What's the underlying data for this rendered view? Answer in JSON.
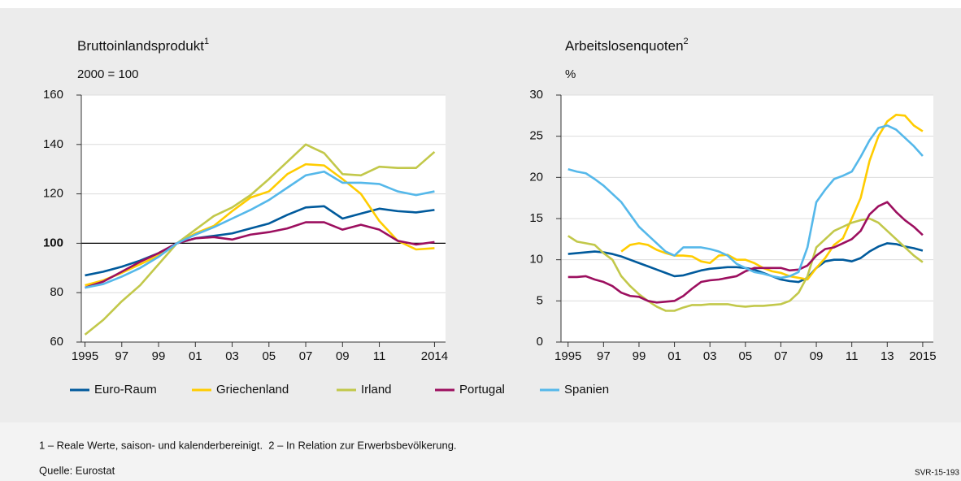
{
  "chart_data": [
    {
      "type": "line",
      "title": "Bruttoinlandsprodukt",
      "title_note": "1",
      "subtitle": "2000 = 100",
      "x": [
        1995,
        1996,
        1997,
        1998,
        1999,
        2000,
        2001,
        2002,
        2003,
        2004,
        2005,
        2006,
        2007,
        2008,
        2009,
        2010,
        2011,
        2012,
        2013,
        2014
      ],
      "xlim": [
        1994.8,
        2014.6
      ],
      "xticks": [
        1995,
        {
          "value": 1997,
          "label": "97"
        },
        {
          "value": 1999,
          "label": "99"
        },
        {
          "value": 2001,
          "label": "01"
        },
        {
          "value": 2003,
          "label": "03"
        },
        {
          "value": 2005,
          "label": "05"
        },
        {
          "value": 2007,
          "label": "07"
        },
        {
          "value": 2009,
          "label": "09"
        },
        {
          "value": 2011,
          "label": "11"
        },
        2014
      ],
      "ylim": [
        60,
        160
      ],
      "yticks": [
        60,
        80,
        100,
        120,
        140,
        160
      ],
      "reference_line": 100,
      "grid": true,
      "series": [
        {
          "name": "Euro-Raum",
          "color": "#005a9c",
          "values": [
            87,
            88.5,
            90.5,
            93,
            96,
            100,
            102,
            103,
            104,
            106,
            108,
            111.5,
            114.5,
            115,
            110,
            112,
            114,
            113,
            112.5,
            113.5
          ]
        },
        {
          "name": "Griechenland",
          "color": "#ffcc00",
          "values": [
            83,
            85,
            88,
            91.5,
            95,
            100,
            104,
            107,
            113,
            118.5,
            121,
            128,
            132,
            131.5,
            126,
            120,
            109,
            101,
            97.5,
            98
          ]
        },
        {
          "name": "Irland",
          "color": "#c2c84a",
          "values": [
            63,
            69,
            76.5,
            83,
            91.5,
            100,
            105.5,
            111,
            114.5,
            119.5,
            126,
            133,
            140,
            136.5,
            128,
            127.5,
            131,
            130.5,
            130.5,
            137
          ]
        },
        {
          "name": "Portugal",
          "color": "#9c0f5f",
          "values": [
            82,
            84.5,
            88.5,
            92.5,
            96,
            100,
            102,
            102.5,
            101.5,
            103.5,
            104.5,
            106,
            108.5,
            108.5,
            105.5,
            107.5,
            105.5,
            101,
            99.5,
            100.5
          ]
        },
        {
          "name": "Spanien",
          "color": "#55b8ea",
          "values": [
            82,
            83.5,
            86.5,
            90,
            94.5,
            100,
            103.5,
            106.5,
            110,
            113.5,
            117.5,
            122.5,
            127.5,
            129,
            124.5,
            124.5,
            124,
            121,
            119.5,
            121
          ]
        }
      ]
    },
    {
      "type": "line",
      "title": "Arbeitslosenquoten",
      "title_note": "2",
      "subtitle": "%",
      "x": [
        1995,
        1995.5,
        1996,
        1996.5,
        1997,
        1997.5,
        1998,
        1998.5,
        1999,
        1999.5,
        2000,
        2000.5,
        2001,
        2001.5,
        2002,
        2002.5,
        2003,
        2003.5,
        2004,
        2004.5,
        2005,
        2005.5,
        2006,
        2006.5,
        2007,
        2007.5,
        2008,
        2008.5,
        2009,
        2009.5,
        2010,
        2010.5,
        2011,
        2011.5,
        2012,
        2012.5,
        2013,
        2013.5,
        2014,
        2014.5,
        2015
      ],
      "xlim": [
        1994.6,
        2015.6
      ],
      "xticks": [
        1995,
        {
          "value": 1997,
          "label": "97"
        },
        {
          "value": 1999,
          "label": "99"
        },
        {
          "value": 2001,
          "label": "01"
        },
        {
          "value": 2003,
          "label": "03"
        },
        {
          "value": 2005,
          "label": "05"
        },
        {
          "value": 2007,
          "label": "07"
        },
        {
          "value": 2009,
          "label": "09"
        },
        {
          "value": 2011,
          "label": "11"
        },
        {
          "value": 2013,
          "label": "13"
        },
        2015
      ],
      "ylim": [
        0,
        30
      ],
      "yticks": [
        0,
        5,
        10,
        15,
        20,
        25,
        30
      ],
      "grid": true,
      "series": [
        {
          "name": "Euro-Raum",
          "color": "#005a9c",
          "values": [
            10.7,
            10.8,
            10.9,
            11.0,
            10.9,
            10.7,
            10.4,
            10.0,
            9.6,
            9.2,
            8.8,
            8.4,
            8.0,
            8.1,
            8.4,
            8.7,
            8.9,
            9.0,
            9.1,
            9.1,
            9.0,
            8.8,
            8.4,
            8.0,
            7.6,
            7.4,
            7.3,
            7.8,
            9.0,
            9.8,
            10.0,
            10.0,
            9.8,
            10.2,
            11.0,
            11.6,
            12.0,
            11.9,
            11.6,
            11.4,
            11.1
          ]
        },
        {
          "name": "Griechenland",
          "color": "#ffcc00",
          "values": [
            null,
            null,
            null,
            null,
            null,
            null,
            11.0,
            11.8,
            12.0,
            11.8,
            11.2,
            10.8,
            10.5,
            10.5,
            10.4,
            9.8,
            9.6,
            10.5,
            10.6,
            10.0,
            10.0,
            9.6,
            9.0,
            8.6,
            8.4,
            8.0,
            7.8,
            7.6,
            9.0,
            10.2,
            11.8,
            12.6,
            15.0,
            17.5,
            22.0,
            25.0,
            26.8,
            27.6,
            27.5,
            26.3,
            25.6
          ]
        },
        {
          "name": "Irland",
          "color": "#c2c84a",
          "values": [
            12.9,
            12.2,
            12.0,
            11.8,
            10.8,
            10.0,
            8.0,
            6.8,
            5.8,
            5.0,
            4.3,
            3.8,
            3.8,
            4.2,
            4.5,
            4.5,
            4.6,
            4.6,
            4.6,
            4.4,
            4.3,
            4.4,
            4.4,
            4.5,
            4.6,
            5.0,
            6.0,
            8.0,
            11.5,
            12.5,
            13.5,
            14.0,
            14.5,
            14.8,
            15.0,
            14.5,
            13.5,
            12.5,
            11.5,
            10.5,
            9.7
          ]
        },
        {
          "name": "Portugal",
          "color": "#9c0f5f",
          "values": [
            7.9,
            7.9,
            8.0,
            7.6,
            7.3,
            6.8,
            6.0,
            5.6,
            5.5,
            5.0,
            4.8,
            4.9,
            5.0,
            5.6,
            6.5,
            7.3,
            7.5,
            7.6,
            7.8,
            8.0,
            8.6,
            9.0,
            9.0,
            9.0,
            9.0,
            8.7,
            8.8,
            9.3,
            10.5,
            11.3,
            11.5,
            12.0,
            12.5,
            13.5,
            15.5,
            16.5,
            17.0,
            15.8,
            14.8,
            14.0,
            13.0
          ]
        },
        {
          "name": "Spanien",
          "color": "#55b8ea",
          "values": [
            21.0,
            20.7,
            20.5,
            19.8,
            19.0,
            18.0,
            17.0,
            15.5,
            14.0,
            13.0,
            12.0,
            11.0,
            10.5,
            11.5,
            11.5,
            11.5,
            11.3,
            11.0,
            10.5,
            9.5,
            9.0,
            8.5,
            8.3,
            8.0,
            7.8,
            8.0,
            8.5,
            11.5,
            17.0,
            18.5,
            19.8,
            20.2,
            20.7,
            22.5,
            24.5,
            26.0,
            26.3,
            25.8,
            24.8,
            23.8,
            22.6
          ]
        }
      ]
    }
  ],
  "footnote": "1 – Reale Werte, saison- und kalenderbereinigt.  2 – In Relation zur Erwerbsbevölkerung.",
  "source": "Quelle: Eurostat",
  "code": "SVR-15-193"
}
